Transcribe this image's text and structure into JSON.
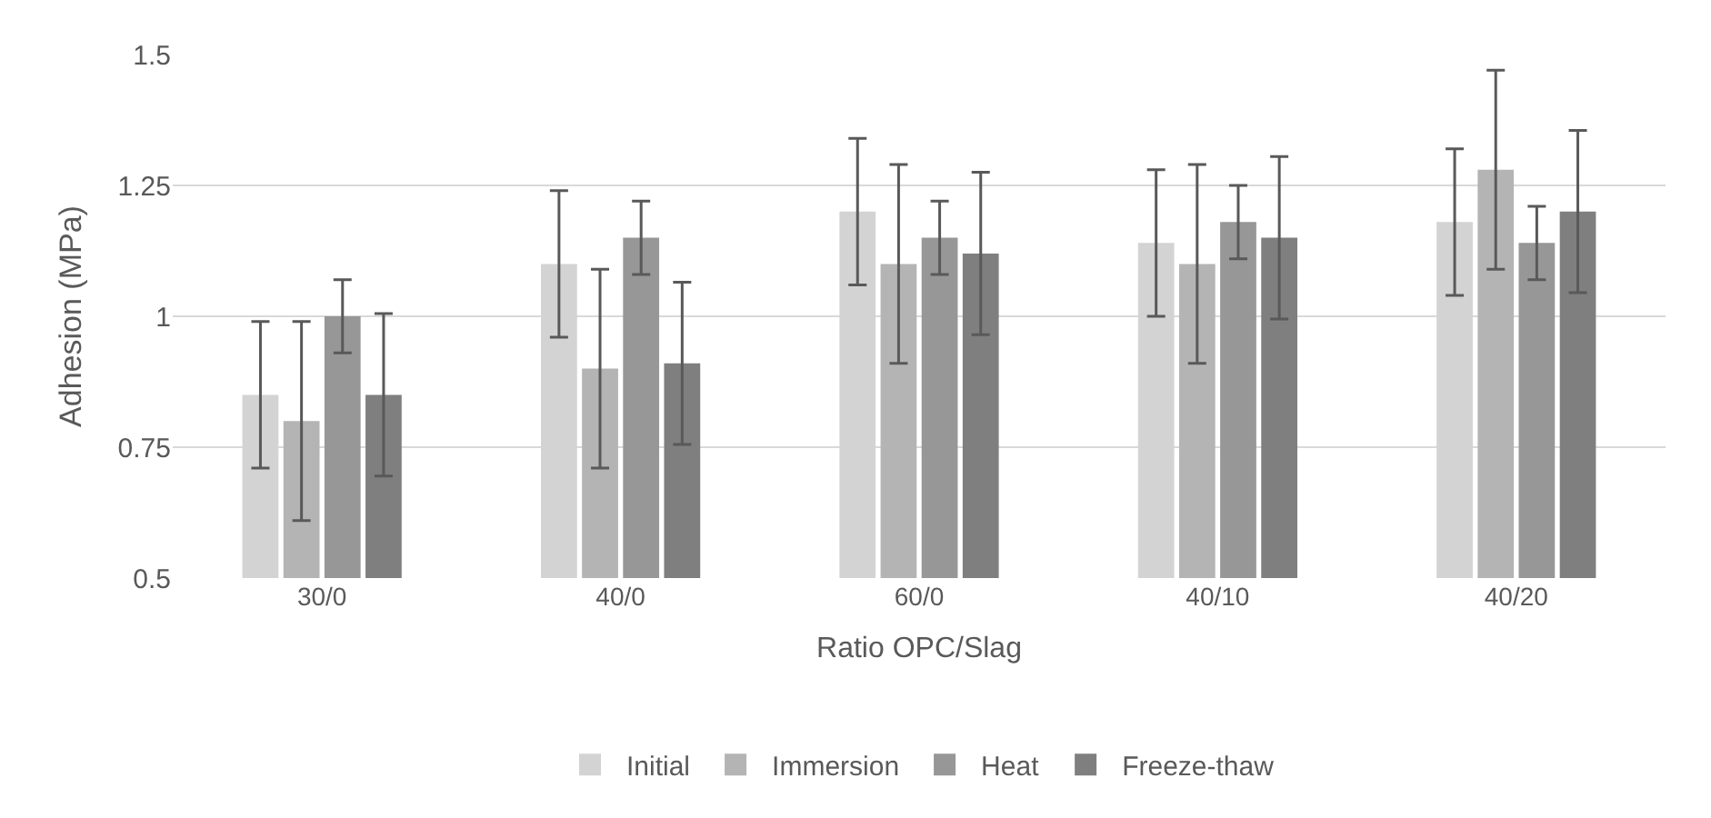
{
  "chart_data": {
    "type": "bar",
    "xlabel": "Ratio OPC/Slag",
    "ylabel": "Adhesion (MPa)",
    "categories": [
      "30/0",
      "40/0",
      "60/0",
      "40/10",
      "40/20"
    ],
    "series": [
      {
        "name": "Initial",
        "color": "#d3d3d3",
        "values": [
          0.85,
          1.1,
          1.2,
          1.14,
          1.18
        ],
        "errors": [
          0.14,
          0.14,
          0.14,
          0.14,
          0.14
        ]
      },
      {
        "name": "Immersion",
        "color": "#b4b4b4",
        "values": [
          0.8,
          0.9,
          1.1,
          1.1,
          1.28
        ],
        "errors": [
          0.19,
          0.19,
          0.19,
          0.19,
          0.19
        ]
      },
      {
        "name": "Heat",
        "color": "#979797",
        "values": [
          1.0,
          1.15,
          1.15,
          1.18,
          1.14
        ],
        "errors": [
          0.07,
          0.07,
          0.07,
          0.07,
          0.07
        ]
      },
      {
        "name": "Freeze-thaw",
        "color": "#7f7f7f",
        "values": [
          0.85,
          0.91,
          1.12,
          1.15,
          1.2
        ],
        "errors": [
          0.155,
          0.155,
          0.155,
          0.155,
          0.155
        ]
      }
    ],
    "ylim": [
      0.5,
      1.5
    ],
    "yticks": [
      0.5,
      {
        "value": 0.75,
        "label": "0.75"
      },
      1,
      {
        "value": 1.25,
        "label": "1.25"
      },
      1.5
    ],
    "grid": "y",
    "legend": "bottom"
  }
}
